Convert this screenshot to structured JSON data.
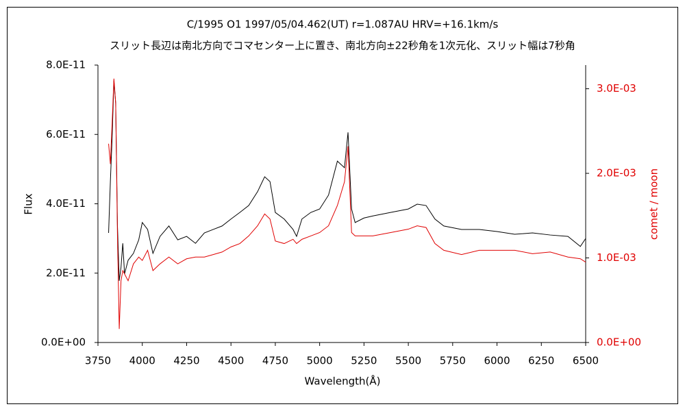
{
  "chart_data": {
    "type": "line",
    "title": "C/1995 O1   1997/05/04.462(UT)   r=1.087AU   HRV=+16.1km/s",
    "subtitle": "スリット長辺は南北方向でコマセンター上に置き、南北方向±22秒角を1次元化、スリット幅は7秒角",
    "xlabel": "Wavelength(Å)",
    "ylabel": "Flux",
    "y2label": "comet / moon",
    "x": [
      3810,
      3820,
      3830,
      3840,
      3850,
      3860,
      3870,
      3880,
      3890,
      3900,
      3920,
      3950,
      3980,
      4000,
      4030,
      4060,
      4100,
      4150,
      4200,
      4250,
      4300,
      4350,
      4400,
      4450,
      4500,
      4550,
      4600,
      4650,
      4690,
      4720,
      4750,
      4800,
      4850,
      4870,
      4900,
      4950,
      5000,
      5050,
      5100,
      5140,
      5160,
      5180,
      5200,
      5250,
      5300,
      5400,
      5500,
      5550,
      5600,
      5650,
      5700,
      5800,
      5900,
      6000,
      6100,
      6200,
      6300,
      6400,
      6470,
      6500
    ],
    "series": [
      {
        "color": "#000000",
        "values": [
          3.16e-11,
          4.64e-11,
          5.93e-11,
          7.55e-11,
          6.9e-11,
          3.36e-11,
          1.78e-11,
          2.17e-11,
          2.86e-11,
          1.98e-11,
          2.37e-11,
          2.57e-11,
          2.96e-11,
          3.46e-11,
          3.26e-11,
          2.57e-11,
          3.06e-11,
          3.36e-11,
          2.96e-11,
          3.06e-11,
          2.86e-11,
          3.16e-11,
          3.26e-11,
          3.36e-11,
          3.56e-11,
          3.75e-11,
          3.95e-11,
          4.35e-11,
          4.78e-11,
          4.64e-11,
          3.75e-11,
          3.56e-11,
          3.26e-11,
          3.06e-11,
          3.56e-11,
          3.75e-11,
          3.85e-11,
          4.25e-11,
          5.23e-11,
          5.04e-11,
          6.06e-11,
          3.85e-11,
          3.46e-11,
          3.59e-11,
          3.65e-11,
          3.75e-11,
          3.85e-11,
          3.99e-11,
          3.95e-11,
          3.56e-11,
          3.36e-11,
          3.26e-11,
          3.26e-11,
          3.2e-11,
          3.12e-11,
          3.16e-11,
          3.1e-11,
          3.06e-11,
          2.77e-11,
          3e-11
        ]
      },
      {
        "color": "#e00000",
        "axis": "y2",
        "values": [
          0.00235,
          0.00211,
          0.0026,
          0.00312,
          0.00283,
          0.00126,
          0.00016,
          0.00073,
          0.00085,
          0.00081,
          0.00073,
          0.00093,
          0.00101,
          0.00097,
          0.00109,
          0.00085,
          0.00093,
          0.00101,
          0.00093,
          0.00099,
          0.00101,
          0.00101,
          0.00104,
          0.00107,
          0.00113,
          0.00117,
          0.00126,
          0.00138,
          0.00152,
          0.00146,
          0.0012,
          0.00117,
          0.00122,
          0.00117,
          0.00122,
          0.00126,
          0.0013,
          0.00138,
          0.00162,
          0.0019,
          0.00232,
          0.0013,
          0.00126,
          0.00126,
          0.00126,
          0.0013,
          0.00134,
          0.00138,
          0.00136,
          0.00117,
          0.00109,
          0.00104,
          0.00109,
          0.00109,
          0.00109,
          0.00105,
          0.00107,
          0.00101,
          0.00099,
          0.00095
        ]
      }
    ],
    "xlim": [
      3750,
      6500
    ],
    "xticks": [
      3750,
      4000,
      4250,
      4500,
      4750,
      5000,
      5250,
      5500,
      5750,
      6000,
      6250,
      6500
    ],
    "ylim": [
      0,
      8e-11
    ],
    "yticks": [
      {
        "value": 0,
        "label": "0.0E+00"
      },
      {
        "value": 2e-11,
        "label": "2.0E-11"
      },
      {
        "value": 4e-11,
        "label": "4.0E-11"
      },
      {
        "value": 6e-11,
        "label": "6.0E-11"
      },
      {
        "value": 8e-11,
        "label": "8.0E-11"
      }
    ],
    "y2lim": [
      0,
      0.00328
    ],
    "y2ticks": [
      {
        "value": 0,
        "label": "0.0E+00"
      },
      {
        "value": 0.001,
        "label": "1.0E-03"
      },
      {
        "value": 0.002,
        "label": "2.0E-03"
      },
      {
        "value": 0.003,
        "label": "3.0E-03"
      }
    ],
    "y2color": "#e00000",
    "grid": false
  }
}
